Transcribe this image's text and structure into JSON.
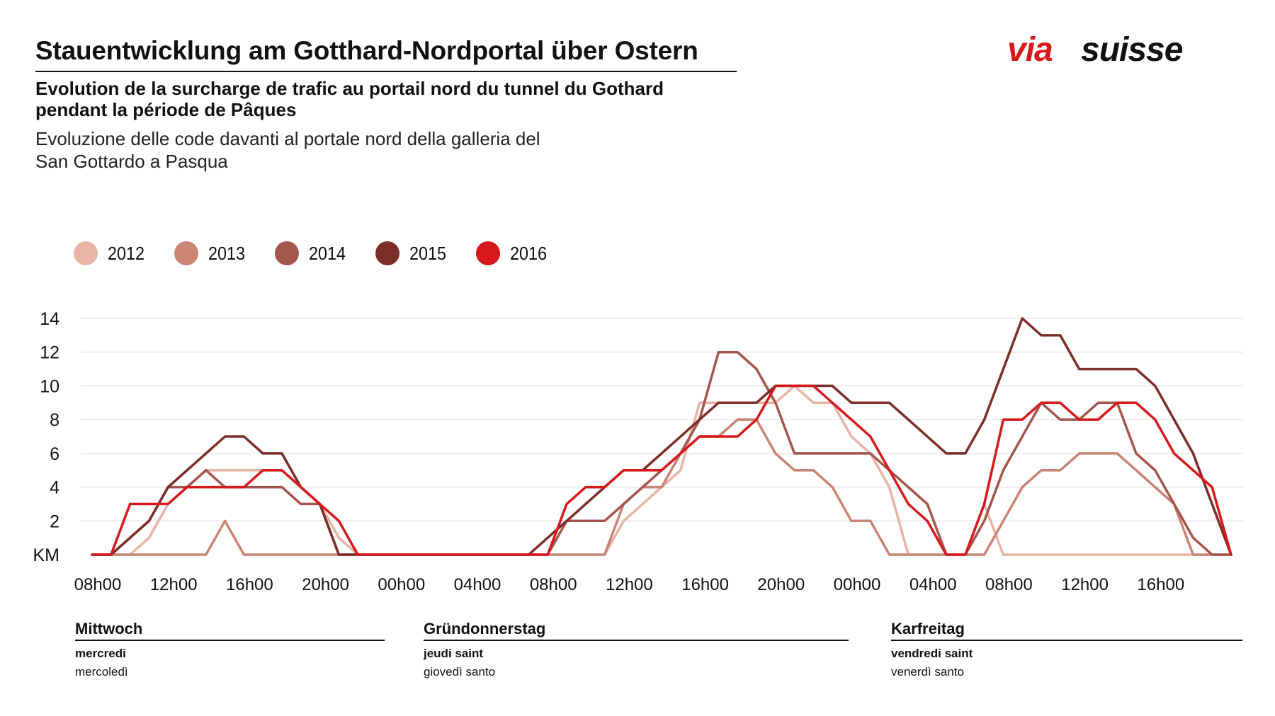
{
  "header": {
    "title_de": "Stauentwicklung am Gotthard-Nordportal über Ostern",
    "title_fr": "Evolution de la surcharge de trafic au portail nord du tunnel du Gothard pendant la période de Pâques",
    "title_it": "Evoluzione delle code davanti al portale nord della galleria del San Gottardo a Pasqua",
    "logo_text_via": "via",
    "logo_text_suisse": "suisse",
    "logo_color_via": "#d7191c",
    "logo_color_suisse": "#111111"
  },
  "days": [
    {
      "de": "Mittwoch",
      "fr": "mercredi",
      "it": "mercoledì"
    },
    {
      "de": "Gründonnerstag",
      "fr": "jeudi saint",
      "it": "giovedì santo"
    },
    {
      "de": "Karfreitag",
      "fr": "vendredi saint",
      "it": "venerdì santo"
    }
  ],
  "chart_data": {
    "type": "line",
    "x_tick_labels": [
      "08h00",
      "12h00",
      "16h00",
      "20h00",
      "00h00",
      "04h00",
      "08h00",
      "12h00",
      "16h00",
      "20h00",
      "00h00",
      "04h00",
      "08h00",
      "12h00",
      "16h00"
    ],
    "y_tick_labels": [
      "KM",
      "2",
      "4",
      "6",
      "8",
      "10",
      "12",
      "14"
    ],
    "ylim": [
      0,
      14
    ],
    "x_hour_range": [
      8,
      68
    ],
    "grid": "horizontal",
    "legend_position": "top-left",
    "series": [
      {
        "name": "2012",
        "color": "#e8b4a8",
        "x": [
          8,
          9,
          10,
          11,
          12,
          13,
          14,
          15,
          16,
          17,
          18,
          19,
          20,
          21,
          22,
          23,
          24,
          25,
          26,
          27,
          28,
          29,
          30,
          31,
          32,
          33,
          34,
          35,
          36,
          37,
          38,
          39,
          40,
          41,
          42,
          43,
          44,
          45,
          46,
          47,
          48,
          49,
          50,
          51,
          52,
          53,
          54,
          55,
          56,
          57,
          58,
          59,
          60,
          61,
          62,
          63,
          64,
          65,
          66,
          67,
          68
        ],
        "values": [
          0,
          0,
          0,
          1,
          3,
          4,
          5,
          5,
          5,
          5,
          5,
          4,
          3,
          1,
          0,
          0,
          0,
          0,
          0,
          0,
          0,
          0,
          0,
          0,
          0,
          0,
          0,
          0,
          2,
          3,
          4,
          5,
          9,
          9,
          9,
          9,
          9,
          10,
          9,
          9,
          7,
          6,
          4,
          0,
          0,
          0,
          0,
          3,
          0,
          0,
          0,
          0,
          0,
          0,
          0,
          0,
          0,
          0,
          0,
          0,
          0
        ]
      },
      {
        "name": "2013",
        "color": "#c98474",
        "x": [
          8,
          9,
          10,
          11,
          12,
          13,
          14,
          15,
          16,
          17,
          18,
          19,
          20,
          21,
          22,
          23,
          24,
          25,
          26,
          27,
          28,
          29,
          30,
          31,
          32,
          33,
          34,
          35,
          36,
          37,
          38,
          39,
          40,
          41,
          42,
          43,
          44,
          45,
          46,
          47,
          48,
          49,
          50,
          51,
          52,
          53,
          54,
          55,
          56,
          57,
          58,
          59,
          60,
          61,
          62,
          63,
          64,
          65,
          66,
          67,
          68
        ],
        "values": [
          0,
          0,
          0,
          0,
          0,
          0,
          0,
          2,
          0,
          0,
          0,
          0,
          0,
          0,
          0,
          0,
          0,
          0,
          0,
          0,
          0,
          0,
          0,
          0,
          0,
          0,
          0,
          0,
          3,
          4,
          4,
          6,
          7,
          7,
          8,
          8,
          6,
          5,
          5,
          4,
          2,
          2,
          0,
          0,
          0,
          0,
          0,
          0,
          2,
          4,
          5,
          5,
          6,
          6,
          6,
          5,
          4,
          3,
          0,
          0,
          0
        ]
      },
      {
        "name": "2014",
        "color": "#a4564c",
        "x": [
          8,
          9,
          10,
          11,
          12,
          13,
          14,
          15,
          16,
          17,
          18,
          19,
          20,
          21,
          22,
          23,
          24,
          25,
          26,
          27,
          28,
          29,
          30,
          31,
          32,
          33,
          34,
          35,
          36,
          37,
          38,
          39,
          40,
          41,
          42,
          43,
          44,
          45,
          46,
          47,
          48,
          49,
          50,
          51,
          52,
          53,
          54,
          55,
          56,
          57,
          58,
          59,
          60,
          61,
          62,
          63,
          64,
          65,
          66,
          67,
          68
        ],
        "values": [
          0,
          0,
          1,
          2,
          4,
          4,
          5,
          4,
          4,
          4,
          4,
          3,
          3,
          0,
          0,
          0,
          0,
          0,
          0,
          0,
          0,
          0,
          0,
          0,
          0,
          2,
          2,
          2,
          3,
          4,
          5,
          6,
          8,
          12,
          12,
          11,
          9,
          6,
          6,
          6,
          6,
          6,
          5,
          4,
          3,
          0,
          0,
          2,
          5,
          7,
          9,
          8,
          8,
          9,
          9,
          6,
          5,
          3,
          1,
          0,
          0
        ]
      },
      {
        "name": "2015",
        "color": "#7b2e28",
        "x": [
          8,
          9,
          10,
          11,
          12,
          13,
          14,
          15,
          16,
          17,
          18,
          19,
          20,
          21,
          22,
          23,
          24,
          25,
          26,
          27,
          28,
          29,
          30,
          31,
          32,
          33,
          34,
          35,
          36,
          37,
          38,
          39,
          40,
          41,
          42,
          43,
          44,
          45,
          46,
          47,
          48,
          49,
          50,
          51,
          52,
          53,
          54,
          55,
          56,
          57,
          58,
          59,
          60,
          61,
          62,
          63,
          64,
          65,
          66,
          67,
          68
        ],
        "values": [
          0,
          0,
          1,
          2,
          4,
          5,
          6,
          7,
          7,
          6,
          6,
          4,
          3,
          0,
          0,
          0,
          0,
          0,
          0,
          0,
          0,
          0,
          0,
          0,
          1,
          2,
          3,
          4,
          5,
          5,
          6,
          7,
          8,
          9,
          9,
          9,
          10,
          10,
          10,
          10,
          9,
          9,
          9,
          8,
          7,
          6,
          6,
          8,
          11,
          14,
          13,
          13,
          11,
          11,
          11,
          11,
          10,
          8,
          6,
          3,
          0
        ]
      },
      {
        "name": "2016",
        "color": "#d7191c",
        "x": [
          8,
          9,
          10,
          11,
          12,
          13,
          14,
          15,
          16,
          17,
          18,
          19,
          20,
          21,
          22,
          23,
          24,
          25,
          26,
          27,
          28,
          29,
          30,
          31,
          32,
          33,
          34,
          35,
          36,
          37,
          38,
          39,
          40,
          41,
          42,
          43,
          44,
          45,
          46,
          47,
          48,
          49,
          50,
          51,
          52,
          53,
          54,
          55,
          56,
          57,
          58,
          59,
          60,
          61,
          62,
          63,
          64,
          65,
          66,
          67,
          68
        ],
        "values": [
          0,
          0,
          3,
          3,
          3,
          4,
          4,
          4,
          4,
          5,
          5,
          4,
          3,
          2,
          0,
          0,
          0,
          0,
          0,
          0,
          0,
          0,
          0,
          0,
          0,
          3,
          4,
          4,
          5,
          5,
          5,
          6,
          7,
          7,
          7,
          8,
          10,
          10,
          10,
          9,
          8,
          7,
          5,
          3,
          2,
          0,
          0,
          3,
          8,
          8,
          9,
          9,
          8,
          8,
          9,
          9,
          8,
          6,
          5,
          4,
          0
        ]
      }
    ]
  }
}
